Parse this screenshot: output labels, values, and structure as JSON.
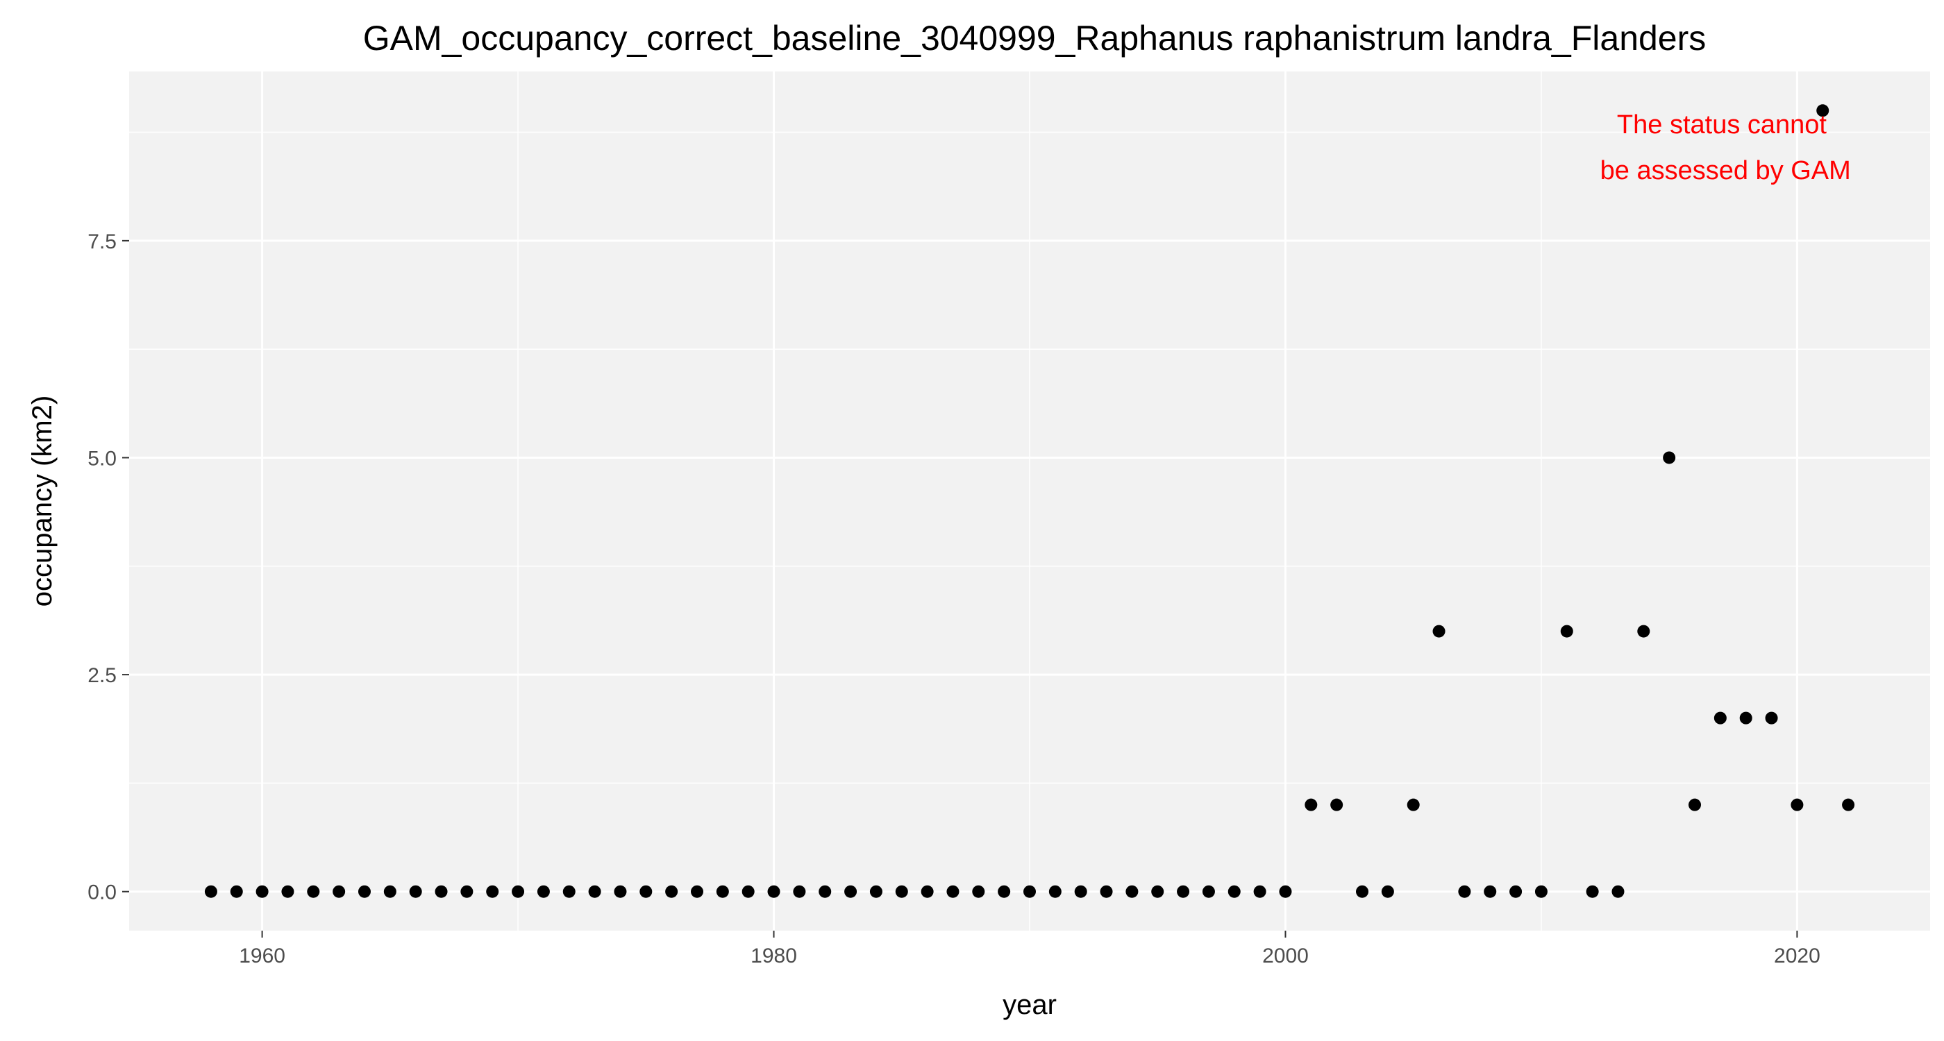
{
  "chart_data": {
    "type": "scatter",
    "title": "GAM_occupancy_correct_baseline_3040999_Raphanus raphanistrum landra_Flanders",
    "xlabel": "year",
    "ylabel": "occupancy (km2)",
    "xlim": [
      1954.8,
      2025.2
    ],
    "ylim": [
      -0.45,
      9.45
    ],
    "x_ticks": [
      1960,
      1980,
      2000,
      2020
    ],
    "x_tick_labels": [
      "1960",
      "1980",
      "2000",
      "2020"
    ],
    "x_minor_ticks": [
      1970,
      1990,
      2010
    ],
    "y_ticks": [
      0,
      2.5,
      5,
      7.5
    ],
    "y_tick_labels": [
      "0.0",
      "2.5",
      "5.0",
      "7.5"
    ],
    "y_minor_ticks": [
      1.25,
      3.75,
      6.25,
      8.75
    ],
    "grid": true,
    "legend": "none",
    "colors": {
      "panel": "#f2f2f2",
      "grid": "#ffffff",
      "point": "#000000",
      "annotation": "#ff0000"
    },
    "annotation": {
      "lines": [
        "The status cannot",
        "be assessed by GAM"
      ]
    },
    "points": [
      {
        "x": 1958,
        "y": 0
      },
      {
        "x": 1959,
        "y": 0
      },
      {
        "x": 1960,
        "y": 0
      },
      {
        "x": 1961,
        "y": 0
      },
      {
        "x": 1962,
        "y": 0
      },
      {
        "x": 1963,
        "y": 0
      },
      {
        "x": 1964,
        "y": 0
      },
      {
        "x": 1965,
        "y": 0
      },
      {
        "x": 1966,
        "y": 0
      },
      {
        "x": 1967,
        "y": 0
      },
      {
        "x": 1968,
        "y": 0
      },
      {
        "x": 1969,
        "y": 0
      },
      {
        "x": 1970,
        "y": 0
      },
      {
        "x": 1971,
        "y": 0
      },
      {
        "x": 1972,
        "y": 0
      },
      {
        "x": 1973,
        "y": 0
      },
      {
        "x": 1974,
        "y": 0
      },
      {
        "x": 1975,
        "y": 0
      },
      {
        "x": 1976,
        "y": 0
      },
      {
        "x": 1977,
        "y": 0
      },
      {
        "x": 1978,
        "y": 0
      },
      {
        "x": 1979,
        "y": 0
      },
      {
        "x": 1980,
        "y": 0
      },
      {
        "x": 1981,
        "y": 0
      },
      {
        "x": 1982,
        "y": 0
      },
      {
        "x": 1983,
        "y": 0
      },
      {
        "x": 1984,
        "y": 0
      },
      {
        "x": 1985,
        "y": 0
      },
      {
        "x": 1986,
        "y": 0
      },
      {
        "x": 1987,
        "y": 0
      },
      {
        "x": 1988,
        "y": 0
      },
      {
        "x": 1989,
        "y": 0
      },
      {
        "x": 1990,
        "y": 0
      },
      {
        "x": 1991,
        "y": 0
      },
      {
        "x": 1992,
        "y": 0
      },
      {
        "x": 1993,
        "y": 0
      },
      {
        "x": 1994,
        "y": 0
      },
      {
        "x": 1995,
        "y": 0
      },
      {
        "x": 1996,
        "y": 0
      },
      {
        "x": 1997,
        "y": 0
      },
      {
        "x": 1998,
        "y": 0
      },
      {
        "x": 1999,
        "y": 0
      },
      {
        "x": 2000,
        "y": 0
      },
      {
        "x": 2001,
        "y": 1
      },
      {
        "x": 2002,
        "y": 1
      },
      {
        "x": 2003,
        "y": 0
      },
      {
        "x": 2004,
        "y": 0
      },
      {
        "x": 2005,
        "y": 1
      },
      {
        "x": 2006,
        "y": 3
      },
      {
        "x": 2007,
        "y": 0
      },
      {
        "x": 2008,
        "y": 0
      },
      {
        "x": 2009,
        "y": 0
      },
      {
        "x": 2010,
        "y": 0
      },
      {
        "x": 2011,
        "y": 3
      },
      {
        "x": 2012,
        "y": 0
      },
      {
        "x": 2013,
        "y": 0
      },
      {
        "x": 2014,
        "y": 3
      },
      {
        "x": 2015,
        "y": 5
      },
      {
        "x": 2016,
        "y": 1
      },
      {
        "x": 2017,
        "y": 2
      },
      {
        "x": 2018,
        "y": 2
      },
      {
        "x": 2019,
        "y": 2
      },
      {
        "x": 2020,
        "y": 1
      },
      {
        "x": 2021,
        "y": 9
      },
      {
        "x": 2022,
        "y": 1
      }
    ]
  }
}
